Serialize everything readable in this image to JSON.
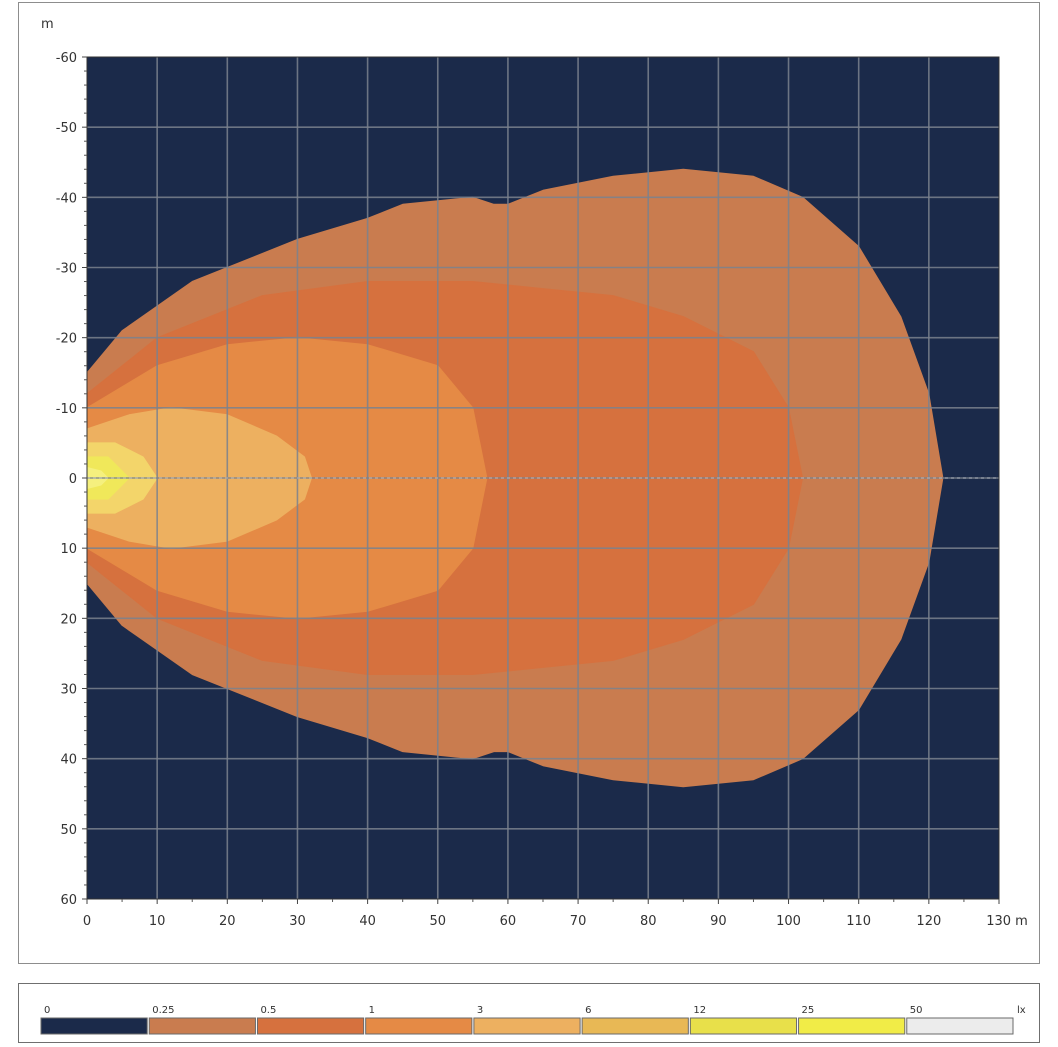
{
  "chart_data": {
    "type": "heatmap",
    "description_units": {
      "x_unit": "m",
      "y_unit": "m",
      "legend_unit": "lx"
    },
    "x_axis": {
      "min": 0,
      "max": 130,
      "ticks": [
        0,
        10,
        20,
        30,
        40,
        50,
        60,
        70,
        80,
        90,
        100,
        110,
        120,
        130
      ],
      "unit_label": "m"
    },
    "y_axis": {
      "min": -60,
      "max": 60,
      "inverted": true,
      "ticks": [
        -60,
        -50,
        -40,
        -30,
        -20,
        -10,
        0,
        10,
        20,
        30,
        40,
        50,
        60
      ],
      "unit_label": "m"
    },
    "grid": true,
    "background_color": "#1b2a4a",
    "grid_color": "#7b828e",
    "contours": [
      {
        "level": 0.25,
        "color": "#c97c4f",
        "points": [
          [
            0,
            -15
          ],
          [
            5,
            -21
          ],
          [
            15,
            -28
          ],
          [
            30,
            -34
          ],
          [
            40,
            -37
          ],
          [
            45,
            -39
          ],
          [
            55,
            -40
          ],
          [
            58,
            -39
          ],
          [
            60,
            -39
          ],
          [
            65,
            -41
          ],
          [
            75,
            -43
          ],
          [
            85,
            -44
          ],
          [
            95,
            -43
          ],
          [
            102,
            -40
          ],
          [
            110,
            -33
          ],
          [
            116,
            -23
          ],
          [
            120,
            -12
          ],
          [
            122,
            0
          ],
          [
            120,
            12
          ],
          [
            116,
            23
          ],
          [
            110,
            33
          ],
          [
            102,
            40
          ],
          [
            95,
            43
          ],
          [
            85,
            44
          ],
          [
            75,
            43
          ],
          [
            65,
            41
          ],
          [
            60,
            39
          ],
          [
            58,
            39
          ],
          [
            55,
            40
          ],
          [
            45,
            39
          ],
          [
            40,
            37
          ],
          [
            30,
            34
          ],
          [
            15,
            28
          ],
          [
            5,
            21
          ],
          [
            0,
            15
          ]
        ]
      },
      {
        "level": 0.5,
        "color": "#d6713e",
        "points": [
          [
            0,
            -12
          ],
          [
            10,
            -20
          ],
          [
            25,
            -26
          ],
          [
            40,
            -28
          ],
          [
            55,
            -28
          ],
          [
            65,
            -27
          ],
          [
            75,
            -26
          ],
          [
            85,
            -23
          ],
          [
            95,
            -18
          ],
          [
            100,
            -10
          ],
          [
            102,
            0
          ],
          [
            100,
            10
          ],
          [
            95,
            18
          ],
          [
            85,
            23
          ],
          [
            75,
            26
          ],
          [
            65,
            27
          ],
          [
            55,
            28
          ],
          [
            40,
            28
          ],
          [
            25,
            26
          ],
          [
            10,
            20
          ],
          [
            0,
            12
          ]
        ]
      },
      {
        "level": 1,
        "color": "#e58a45",
        "points": [
          [
            0,
            -10
          ],
          [
            10,
            -16
          ],
          [
            20,
            -19
          ],
          [
            30,
            -20
          ],
          [
            40,
            -19
          ],
          [
            50,
            -16
          ],
          [
            55,
            -10
          ],
          [
            57,
            0
          ],
          [
            55,
            10
          ],
          [
            50,
            16
          ],
          [
            40,
            19
          ],
          [
            30,
            20
          ],
          [
            20,
            19
          ],
          [
            10,
            16
          ],
          [
            0,
            10
          ]
        ]
      },
      {
        "level": 3,
        "color": "#edb060",
        "points": [
          [
            0,
            -7
          ],
          [
            6,
            -9
          ],
          [
            12,
            -10
          ],
          [
            20,
            -9
          ],
          [
            27,
            -6
          ],
          [
            31,
            -3
          ],
          [
            32,
            0
          ],
          [
            31,
            3
          ],
          [
            27,
            6
          ],
          [
            20,
            9
          ],
          [
            12,
            10
          ],
          [
            6,
            9
          ],
          [
            0,
            7
          ]
        ]
      },
      {
        "level": 6,
        "color": "#f3d56a",
        "points": [
          [
            0,
            -5
          ],
          [
            4,
            -5
          ],
          [
            8,
            -3
          ],
          [
            10,
            0
          ],
          [
            8,
            3
          ],
          [
            4,
            5
          ],
          [
            0,
            5
          ]
        ]
      },
      {
        "level": 12,
        "color": "#f0e85a",
        "points": [
          [
            0,
            -3
          ],
          [
            3,
            -3
          ],
          [
            5,
            -1
          ],
          [
            6,
            0
          ],
          [
            5,
            1
          ],
          [
            3,
            3
          ],
          [
            0,
            3
          ]
        ]
      },
      {
        "level": 25,
        "color": "#f5f07e",
        "points": [
          [
            0,
            -1.5
          ],
          [
            2,
            -1
          ],
          [
            3,
            0
          ],
          [
            2,
            1
          ],
          [
            0,
            1.5
          ]
        ]
      }
    ],
    "legend": {
      "placement": "bottom",
      "unit": "lx",
      "levels": [
        "0",
        "0.25",
        "0.5",
        "1",
        "3",
        "6",
        "12",
        "25",
        "50"
      ],
      "colors": [
        "#1b2a4a",
        "#c97c4f",
        "#d6713e",
        "#e58a45",
        "#edb060",
        "#e8b855",
        "#e8e04a",
        "#f1ec47",
        "#ececec"
      ]
    }
  }
}
